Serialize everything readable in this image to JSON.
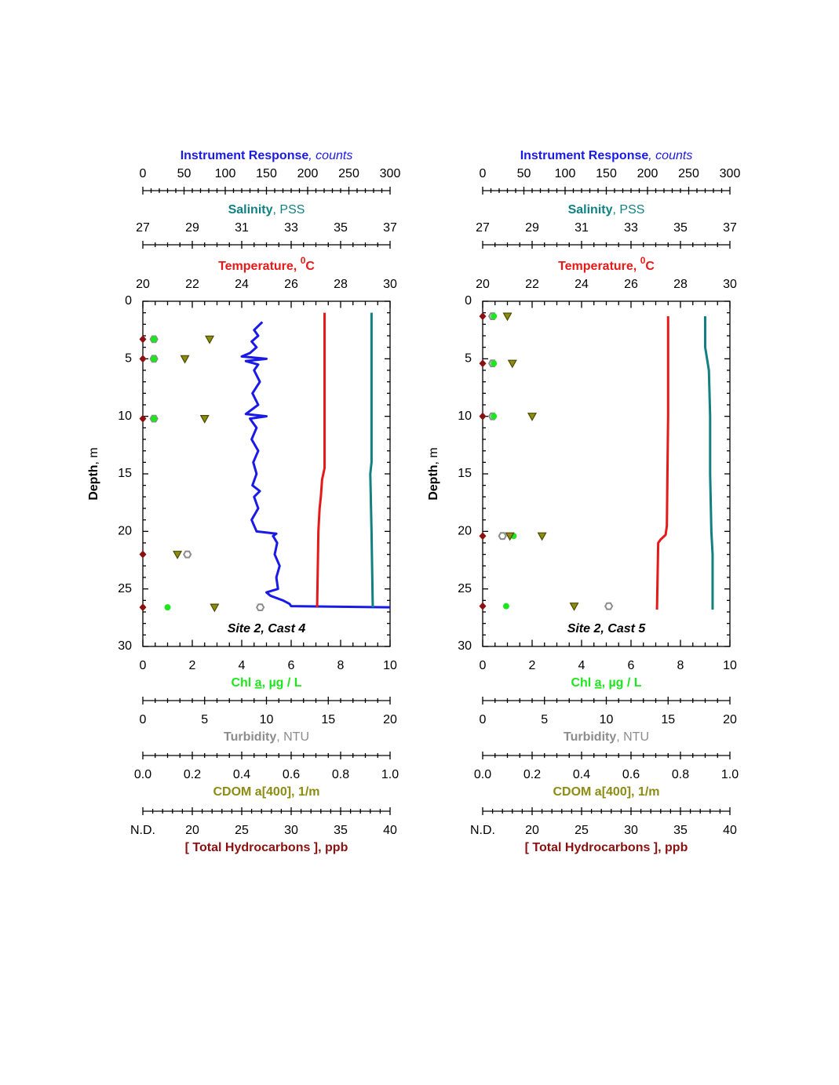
{
  "chart_data": [
    {
      "type": "profile",
      "title": "Site 2, Cast 4",
      "ylabel": [
        "Depth",
        ", m"
      ],
      "ylim": [
        0,
        30
      ],
      "yticks": [
        0,
        5,
        10,
        15,
        20,
        25,
        30
      ],
      "yminor": 5,
      "axes": [
        {
          "side": "top",
          "label": [
            "Instrument Response",
            ", counts"
          ],
          "color": "#1a1ae6",
          "lim": [
            0,
            300
          ],
          "ticks": [
            0,
            50,
            100,
            150,
            200,
            250,
            300
          ],
          "minor": 5
        },
        {
          "side": "top",
          "label": [
            "Salinity",
            ", PSS"
          ],
          "color": "#128080",
          "lim": [
            27,
            37
          ],
          "ticks": [
            27,
            29,
            31,
            33,
            35,
            37
          ],
          "minor": 4
        },
        {
          "side": "top",
          "label": [
            "Temperature, ",
            "0",
            "C"
          ],
          "color": "#e61919",
          "lim": [
            20,
            30
          ],
          "ticks": [
            20,
            22,
            24,
            26,
            28,
            30
          ],
          "minor": 4
        },
        {
          "side": "bottom",
          "label": [
            "Chl ",
            "a",
            ", µg / L"
          ],
          "color": "#1ee61e",
          "lim": [
            0,
            10
          ],
          "ticks": [
            0,
            2,
            4,
            6,
            8,
            10
          ],
          "minor": 4
        },
        {
          "side": "bottom",
          "label": [
            "Turbidity",
            ", NTU"
          ],
          "color": "#8c8c8c",
          "lim": [
            0,
            20
          ],
          "ticks": [
            0,
            5,
            10,
            15,
            20
          ],
          "minor": 5
        },
        {
          "side": "bottom",
          "label": [
            "CDOM a[400], 1/m"
          ],
          "color": "#8c8c14",
          "lim": [
            0,
            1
          ],
          "ticks": [
            {
              "value": 0,
              "label": "0.0"
            },
            0.2,
            0.4,
            0.6,
            0.8,
            {
              "value": 1,
              "label": "1.0"
            }
          ],
          "minor": 4
        },
        {
          "side": "bottom",
          "label": [
            "[ Total Hydrocarbons ], ppb"
          ],
          "color": "#8b1010",
          "lim": [
            15,
            40
          ],
          "ticks": [
            {
              "value": 15,
              "label": "N.D."
            },
            20,
            25,
            30,
            35,
            40
          ],
          "minor": 5
        }
      ],
      "series": [
        {
          "axis": 0,
          "kind": "line",
          "color": "#1a1ae6",
          "depth": [
            1.8,
            2.5,
            3,
            3.5,
            4,
            4.5,
            4.8,
            5,
            5.2,
            5.5,
            6,
            7,
            8,
            9,
            9.8,
            10,
            10.2,
            11,
            12,
            13,
            14,
            15,
            16,
            16.5,
            17,
            18,
            19,
            20,
            20.2,
            20.4,
            21,
            22,
            23,
            24,
            25,
            25.3,
            25.6,
            26,
            26.3,
            26.5,
            26.6
          ],
          "values": [
            145,
            135,
            140,
            132,
            138,
            130,
            120,
            150,
            125,
            140,
            135,
            142,
            133,
            140,
            125,
            150,
            130,
            138,
            132,
            140,
            134,
            138,
            133,
            142,
            135,
            140,
            132,
            138,
            162,
            158,
            163,
            160,
            166,
            162,
            164,
            150,
            155,
            170,
            178,
            180,
            300
          ]
        },
        {
          "axis": 2,
          "kind": "line",
          "color": "#e61919",
          "depth": [
            1,
            14.5,
            15.5,
            17,
            18,
            20,
            26.6
          ],
          "values": [
            27.35,
            27.35,
            27.25,
            27.2,
            27.15,
            27.1,
            27.05
          ]
        },
        {
          "axis": 1,
          "kind": "line",
          "color": "#128080",
          "depth": [
            1,
            14,
            15,
            20,
            26.6
          ],
          "values": [
            36.25,
            36.25,
            36.2,
            36.25,
            36.3
          ]
        },
        {
          "axis": 4,
          "kind": "hexagon",
          "color": "#8c8c8c",
          "depth": [
            3.3,
            5,
            10.2,
            22,
            26.6
          ],
          "values": [
            0.9,
            0.9,
            0.9,
            3.6,
            9.5
          ]
        },
        {
          "axis": 3,
          "kind": "circle",
          "color": "#1ee61e",
          "depth": [
            3.3,
            5,
            10.2,
            26.6
          ],
          "values": [
            0.45,
            0.45,
            0.45,
            1.0
          ]
        },
        {
          "axis": 5,
          "kind": "triangle",
          "color": "#8c8c14",
          "depth": [
            3.3,
            5,
            10.2,
            22,
            26.6
          ],
          "values": [
            0.27,
            0.17,
            0.25,
            0.14,
            0.29
          ]
        },
        {
          "axis": 6,
          "kind": "diamond",
          "color": "#8b1010",
          "depth": [
            3.3,
            5,
            10.2,
            22,
            26.6
          ],
          "values": [
            15,
            15,
            15,
            15,
            15
          ]
        }
      ]
    },
    {
      "type": "profile",
      "title": "Site 2, Cast 5",
      "ylabel": [
        "Depth",
        ", m"
      ],
      "ylim": [
        0,
        30
      ],
      "yticks": [
        0,
        5,
        10,
        15,
        20,
        25,
        30
      ],
      "yminor": 5,
      "axes": [
        {
          "side": "top",
          "label": [
            "Instrument Response",
            ", counts"
          ],
          "color": "#1a1ae6",
          "lim": [
            0,
            300
          ],
          "ticks": [
            0,
            50,
            100,
            150,
            200,
            250,
            300
          ],
          "minor": 5
        },
        {
          "side": "top",
          "label": [
            "Salinity",
            ", PSS"
          ],
          "color": "#128080",
          "lim": [
            27,
            37
          ],
          "ticks": [
            27,
            29,
            31,
            33,
            35,
            37
          ],
          "minor": 4
        },
        {
          "side": "top",
          "label": [
            "Temperature, ",
            "0",
            "C"
          ],
          "color": "#e61919",
          "lim": [
            20,
            30
          ],
          "ticks": [
            20,
            22,
            24,
            26,
            28,
            30
          ],
          "minor": 4
        },
        {
          "side": "bottom",
          "label": [
            "Chl ",
            "a",
            ", µg / L"
          ],
          "color": "#1ee61e",
          "lim": [
            0,
            10
          ],
          "ticks": [
            0,
            2,
            4,
            6,
            8,
            10
          ],
          "minor": 4
        },
        {
          "side": "bottom",
          "label": [
            "Turbidity",
            ", NTU"
          ],
          "color": "#8c8c8c",
          "lim": [
            0,
            20
          ],
          "ticks": [
            0,
            5,
            10,
            15,
            20
          ],
          "minor": 5
        },
        {
          "side": "bottom",
          "label": [
            "CDOM a[400], 1/m"
          ],
          "color": "#8c8c14",
          "lim": [
            0,
            1
          ],
          "ticks": [
            {
              "value": 0,
              "label": "0.0"
            },
            0.2,
            0.4,
            0.6,
            0.8,
            {
              "value": 1,
              "label": "1.0"
            }
          ],
          "minor": 4
        },
        {
          "side": "bottom",
          "label": [
            "[ Total Hydrocarbons ], ppb"
          ],
          "color": "#8b1010",
          "lim": [
            15,
            40
          ],
          "ticks": [
            {
              "value": 15,
              "label": "N.D."
            },
            20,
            25,
            30,
            35,
            40
          ],
          "minor": 5
        }
      ],
      "series": [
        {
          "axis": 2,
          "kind": "line",
          "color": "#e61919",
          "depth": [
            1.3,
            10,
            19.5,
            20.3,
            20.7,
            21,
            26.8
          ],
          "values": [
            27.5,
            27.5,
            27.45,
            27.4,
            27.2,
            27.1,
            27.05
          ]
        },
        {
          "axis": 1,
          "kind": "line",
          "color": "#128080",
          "depth": [
            1.3,
            4,
            6,
            10,
            15,
            20,
            22,
            26.8
          ],
          "values": [
            36.0,
            36.0,
            36.15,
            36.2,
            36.2,
            36.25,
            36.3,
            36.3
          ]
        },
        {
          "axis": 4,
          "kind": "hexagon",
          "color": "#8c8c8c",
          "depth": [
            1.3,
            5.4,
            10,
            20.4,
            26.5
          ],
          "values": [
            0.8,
            0.8,
            0.8,
            1.6,
            10.2
          ]
        },
        {
          "axis": 3,
          "kind": "circle",
          "color": "#1ee61e",
          "depth": [
            1.3,
            5.4,
            10,
            20.4,
            26.5
          ],
          "values": [
            0.45,
            0.45,
            0.45,
            1.25,
            0.95
          ]
        },
        {
          "axis": 5,
          "kind": "triangle",
          "color": "#8c8c14",
          "depth": [
            1.3,
            5.4,
            10,
            20.4,
            20.4,
            26.5
          ],
          "values": [
            0.1,
            0.12,
            0.2,
            0.11,
            0.24,
            0.37
          ]
        },
        {
          "axis": 6,
          "kind": "diamond",
          "color": "#8b1010",
          "depth": [
            1.3,
            5.4,
            10,
            20.4,
            26.5
          ],
          "values": [
            15,
            15,
            15,
            15,
            15
          ]
        }
      ]
    }
  ]
}
